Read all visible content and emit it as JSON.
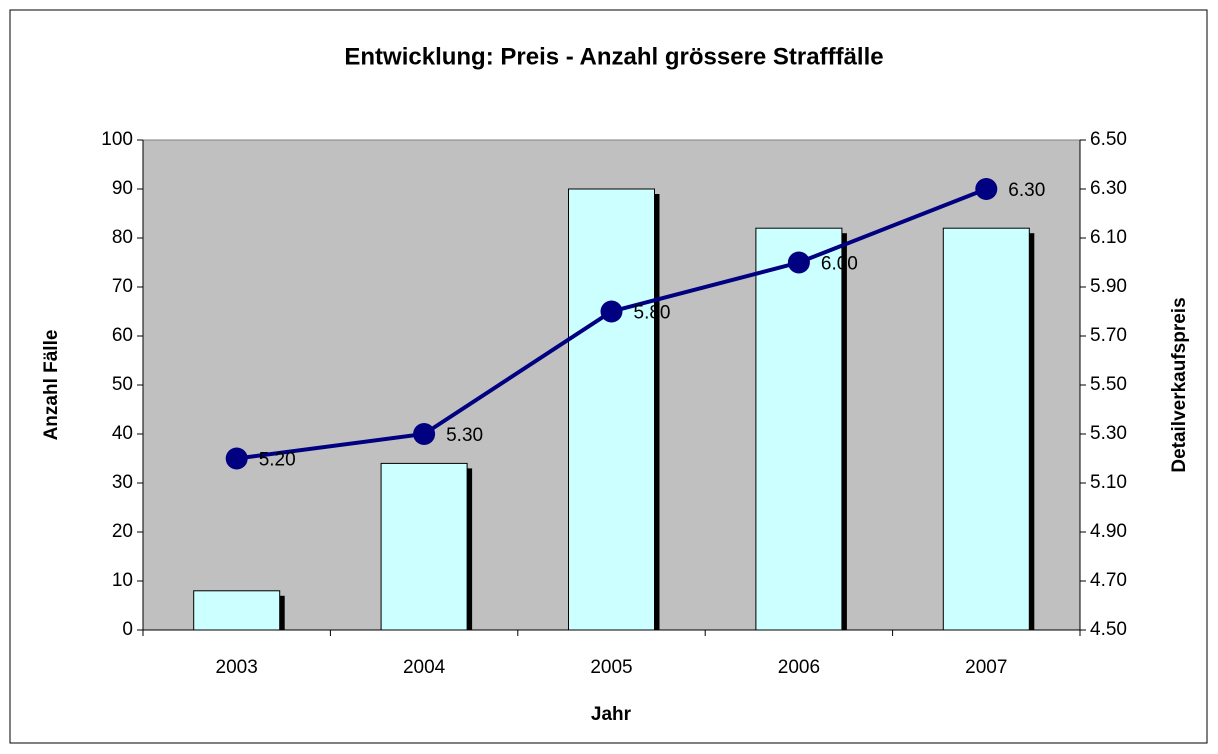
{
  "chart_data": {
    "type": "bar",
    "title": "Entwicklung: Preis - Anzahl grössere Strafffälle",
    "xlabel": "Jahr",
    "ylabel": "Anzahl Fälle",
    "y2label": "Detailverkaufspreis",
    "categories": [
      "2003",
      "2004",
      "2005",
      "2006",
      "2007"
    ],
    "series": [
      {
        "type": "bar",
        "color": "#ccffff",
        "values": [
          8,
          34,
          90,
          82,
          82
        ]
      },
      {
        "type": "line",
        "axis": "y2",
        "color": "#000080",
        "values": [
          5.2,
          5.3,
          5.8,
          6.0,
          6.3
        ],
        "value_labels": [
          "5.20",
          "5.30",
          "5.80",
          "6.00",
          "6.30"
        ]
      }
    ],
    "ylim": [
      0,
      100
    ],
    "yticks": [
      0,
      10,
      20,
      30,
      40,
      50,
      60,
      70,
      80,
      90,
      100
    ],
    "y2lim": [
      4.5,
      6.5
    ],
    "y2ticks": [
      {
        "value": 4.5,
        "label": "4.50"
      },
      {
        "value": 4.7,
        "label": "4.70"
      },
      {
        "value": 4.9,
        "label": "4.90"
      },
      {
        "value": 5.1,
        "label": "5.10"
      },
      {
        "value": 5.3,
        "label": "5.30"
      },
      {
        "value": 5.5,
        "label": "5.50"
      },
      {
        "value": 5.7,
        "label": "5.70"
      },
      {
        "value": 5.9,
        "label": "5.90"
      },
      {
        "value": 6.1,
        "label": "6.10"
      },
      {
        "value": 6.3,
        "label": "6.30"
      },
      {
        "value": 6.5,
        "label": "6.50"
      }
    ],
    "plot_background": "#c0c0c0"
  }
}
